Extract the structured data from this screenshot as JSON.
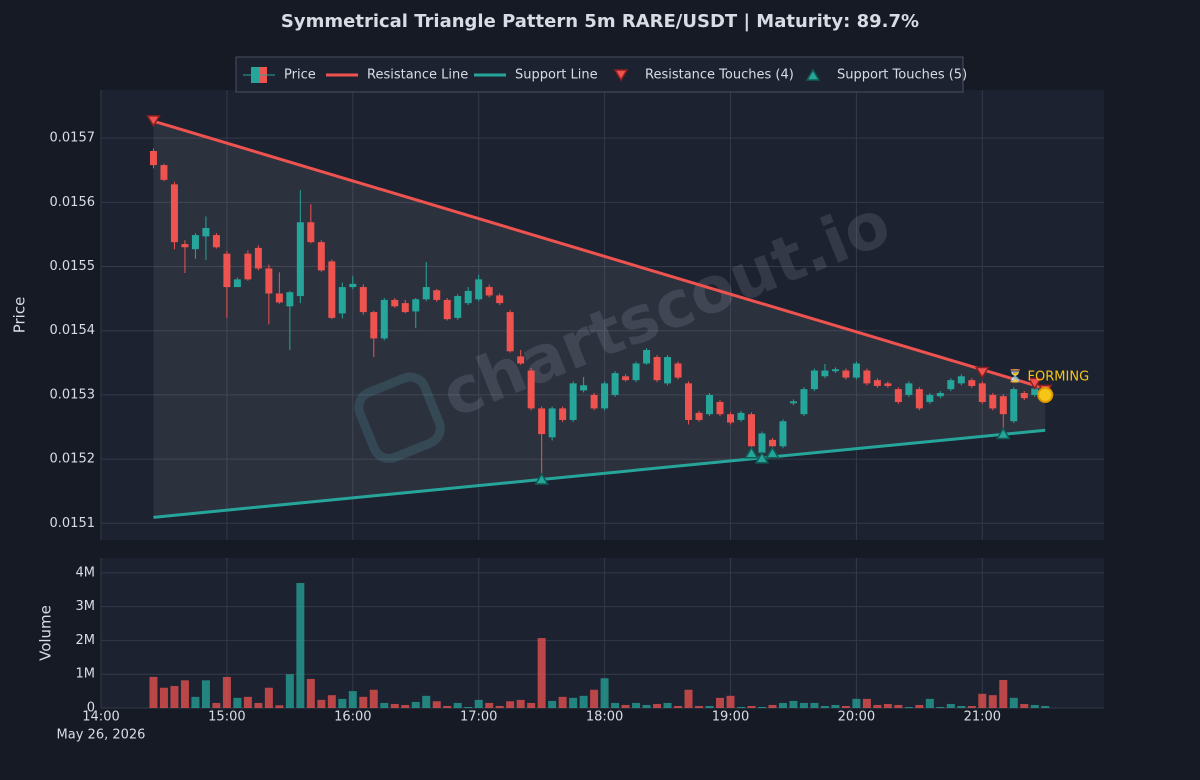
{
  "chart_data": {
    "type": "candlestick",
    "title": "Symmetrical Triangle Pattern 5m RARE/USDT | Maturity: 89.7%",
    "watermark": "chartscout.io",
    "price_name": "Price",
    "ylabel": "Price",
    "up_color": "#26a69a",
    "down_color": "#ef5350",
    "grid": true,
    "legend": "top",
    "x_date_label": "May 26, 2026",
    "xlim": [
      "14:00",
      "21:58"
    ],
    "xticks": [
      "14:00",
      "15:00",
      "16:00",
      "17:00",
      "18:00",
      "19:00",
      "20:00",
      "21:00"
    ],
    "ylim": [
      0.015074,
      0.015775
    ],
    "yticks": [
      0.0151,
      0.0152,
      0.0153,
      0.0154,
      0.0155,
      0.0156,
      0.0157
    ],
    "x": [
      "14:25",
      "14:30",
      "14:35",
      "14:40",
      "14:45",
      "14:50",
      "14:55",
      "15:00",
      "15:05",
      "15:10",
      "15:15",
      "15:20",
      "15:25",
      "15:30",
      "15:35",
      "15:40",
      "15:45",
      "15:50",
      "15:55",
      "16:00",
      "16:05",
      "16:10",
      "16:15",
      "16:20",
      "16:25",
      "16:30",
      "16:35",
      "16:40",
      "16:45",
      "16:50",
      "16:55",
      "17:00",
      "17:05",
      "17:10",
      "17:15",
      "17:20",
      "17:25",
      "17:30",
      "17:35",
      "17:40",
      "17:45",
      "17:50",
      "17:55",
      "18:00",
      "18:05",
      "18:10",
      "18:15",
      "18:20",
      "18:25",
      "18:30",
      "18:35",
      "18:40",
      "18:45",
      "18:50",
      "18:55",
      "19:00",
      "19:05",
      "19:10",
      "19:15",
      "19:20",
      "19:25",
      "19:30",
      "19:35",
      "19:40",
      "19:45",
      "19:50",
      "19:55",
      "20:00",
      "20:05",
      "20:10",
      "20:15",
      "20:20",
      "20:25",
      "20:30",
      "20:35",
      "20:40",
      "20:45",
      "20:50",
      "20:55",
      "21:00",
      "21:05",
      "21:10",
      "21:15",
      "21:20",
      "21:25",
      "21:30"
    ],
    "open": [
      0.01568,
      0.015658,
      0.015628,
      0.015535,
      0.015527,
      0.015547,
      0.015549,
      0.01552,
      0.015468,
      0.01552,
      0.015529,
      0.015497,
      0.015458,
      0.015438,
      0.015454,
      0.015569,
      0.015538,
      0.015508,
      0.015427,
      0.015468,
      0.015468,
      0.015429,
      0.015388,
      0.015448,
      0.015443,
      0.01543,
      0.015449,
      0.015463,
      0.015448,
      0.01542,
      0.015443,
      0.015449,
      0.015468,
      0.015455,
      0.015429,
      0.01536,
      0.015338,
      0.015279,
      0.015234,
      0.015279,
      0.015261,
      0.015307,
      0.0153,
      0.015279,
      0.0153,
      0.015329,
      0.015323,
      0.015349,
      0.015359,
      0.015318,
      0.015349,
      0.015318,
      0.015272,
      0.01527,
      0.015289,
      0.01527,
      0.015261,
      0.01527,
      0.01521,
      0.01523,
      0.01522,
      0.015287,
      0.01527,
      0.015309,
      0.015329,
      0.015337,
      0.015338,
      0.015327,
      0.015338,
      0.015323,
      0.015318,
      0.015309,
      0.0153,
      0.015309,
      0.015289,
      0.015298,
      0.015309,
      0.015318,
      0.015323,
      0.015318,
      0.0153,
      0.015298,
      0.015259,
      0.015303,
      0.0153,
      0.0153
    ],
    "high": [
      0.015684,
      0.01566,
      0.015632,
      0.015541,
      0.015552,
      0.015578,
      0.015552,
      0.015524,
      0.015483,
      0.015525,
      0.015533,
      0.015503,
      0.015491,
      0.015462,
      0.015619,
      0.015597,
      0.015541,
      0.015511,
      0.015475,
      0.015485,
      0.015472,
      0.015431,
      0.015451,
      0.015451,
      0.015448,
      0.015451,
      0.015507,
      0.015465,
      0.015451,
      0.015457,
      0.015468,
      0.015487,
      0.015472,
      0.015458,
      0.015432,
      0.01537,
      0.015342,
      0.015282,
      0.015282,
      0.015282,
      0.015321,
      0.015328,
      0.015303,
      0.015321,
      0.015337,
      0.015332,
      0.015352,
      0.015373,
      0.015362,
      0.015362,
      0.015352,
      0.015321,
      0.015275,
      0.015303,
      0.015292,
      0.015273,
      0.015275,
      0.015273,
      0.015243,
      0.015233,
      0.015262,
      0.015293,
      0.015312,
      0.015341,
      0.015348,
      0.015343,
      0.015341,
      0.015352,
      0.015341,
      0.015326,
      0.015321,
      0.015312,
      0.015321,
      0.015312,
      0.015303,
      0.015306,
      0.015326,
      0.015332,
      0.015326,
      0.015321,
      0.015303,
      0.015301,
      0.015312,
      0.015306,
      0.015313,
      0.015305
    ],
    "low": [
      0.015653,
      0.015633,
      0.015527,
      0.01549,
      0.015512,
      0.01551,
      0.015528,
      0.01542,
      0.015468,
      0.015478,
      0.015494,
      0.01541,
      0.015442,
      0.01537,
      0.015443,
      0.015536,
      0.015492,
      0.015418,
      0.015419,
      0.015465,
      0.015425,
      0.015359,
      0.015385,
      0.015436,
      0.015427,
      0.015404,
      0.015446,
      0.015445,
      0.015416,
      0.015417,
      0.01544,
      0.015446,
      0.015452,
      0.01544,
      0.015366,
      0.015347,
      0.015276,
      0.015167,
      0.015229,
      0.015258,
      0.015258,
      0.015304,
      0.015276,
      0.015276,
      0.015297,
      0.015321,
      0.01532,
      0.015347,
      0.01532,
      0.015315,
      0.015324,
      0.015254,
      0.015258,
      0.015267,
      0.015267,
      0.015254,
      0.015258,
      0.015209,
      0.015203,
      0.015212,
      0.015217,
      0.015284,
      0.015267,
      0.015306,
      0.015326,
      0.015334,
      0.015324,
      0.015324,
      0.015315,
      0.015311,
      0.015311,
      0.015286,
      0.015297,
      0.015276,
      0.015286,
      0.015295,
      0.015306,
      0.015315,
      0.015311,
      0.015286,
      0.015276,
      0.015248,
      0.015256,
      0.015292,
      0.015297,
      0.015297
    ],
    "close": [
      0.015658,
      0.015635,
      0.015538,
      0.01553,
      0.015549,
      0.01556,
      0.01553,
      0.015468,
      0.01548,
      0.01548,
      0.015497,
      0.015458,
      0.015444,
      0.01546,
      0.015569,
      0.015538,
      0.015494,
      0.01542,
      0.015468,
      0.015473,
      0.015429,
      0.015388,
      0.015448,
      0.015438,
      0.015429,
      0.015449,
      0.015468,
      0.015448,
      0.015418,
      0.015454,
      0.015462,
      0.01548,
      0.015455,
      0.015443,
      0.015368,
      0.015349,
      0.015279,
      0.015239,
      0.015279,
      0.015261,
      0.015318,
      0.015315,
      0.015279,
      0.015318,
      0.015334,
      0.015323,
      0.015349,
      0.01537,
      0.015323,
      0.015359,
      0.015327,
      0.015261,
      0.015261,
      0.0153,
      0.01527,
      0.015257,
      0.015272,
      0.01522,
      0.01524,
      0.01522,
      0.015259,
      0.01529,
      0.015309,
      0.015338,
      0.015338,
      0.01534,
      0.015327,
      0.015349,
      0.015318,
      0.015314,
      0.015314,
      0.015289,
      0.015318,
      0.015279,
      0.0153,
      0.015303,
      0.015323,
      0.015329,
      0.015314,
      0.015289,
      0.015279,
      0.01527,
      0.015309,
      0.015295,
      0.01531,
      0.015302
    ],
    "lines": [
      {
        "name": "Resistance Line",
        "color": "#ef5350",
        "x": [
          "14:25",
          "21:30"
        ],
        "values": [
          0.0157265,
          0.01531
        ]
      },
      {
        "name": "Support Line",
        "color": "#26a69a",
        "x": [
          "14:25",
          "21:30"
        ],
        "values": [
          0.0151093,
          0.015245
        ]
      }
    ],
    "touches": [
      {
        "name": "Resistance Touches (4)",
        "marker": "down",
        "color": "#ef5350",
        "x": [
          "14:25",
          "21:00",
          "21:25",
          "21:30"
        ],
        "values": [
          0.015727,
          0.015335,
          0.015318,
          0.015307
        ]
      },
      {
        "name": "Support Touches (5)",
        "marker": "up",
        "color": "#26a69a",
        "x": [
          "17:30",
          "19:10",
          "19:15",
          "19:20",
          "21:10"
        ],
        "values": [
          0.015169,
          0.01521,
          0.015202,
          0.01521,
          0.01524
        ]
      }
    ],
    "current": {
      "text": "⏳ FORMING",
      "x": "21:30",
      "value": 0.0153,
      "color": "#f5c518"
    },
    "volume": {
      "ylabel": "Volume",
      "ylim": [
        0,
        4440000
      ],
      "yticks": [
        0,
        {
          "value": 1000000,
          "label": "1M"
        },
        {
          "value": 2000000,
          "label": "2M"
        },
        {
          "value": 3000000,
          "label": "3M"
        },
        {
          "value": 4000000,
          "label": "4M"
        }
      ],
      "values": [
        920000,
        600000,
        650000,
        820000,
        330000,
        820000,
        150000,
        920000,
        300000,
        330000,
        150000,
        600000,
        80000,
        1000000,
        3700000,
        860000,
        240000,
        380000,
        270000,
        500000,
        330000,
        540000,
        150000,
        120000,
        90000,
        180000,
        360000,
        200000,
        60000,
        150000,
        30000,
        240000,
        150000,
        60000,
        200000,
        240000,
        150000,
        2070000,
        210000,
        330000,
        300000,
        360000,
        540000,
        880000,
        150000,
        90000,
        150000,
        90000,
        120000,
        150000,
        60000,
        540000,
        60000,
        60000,
        300000,
        360000,
        30000,
        60000,
        30000,
        90000,
        150000,
        210000,
        150000,
        150000,
        60000,
        90000,
        60000,
        270000,
        270000,
        90000,
        120000,
        90000,
        30000,
        90000,
        270000,
        30000,
        120000,
        60000,
        60000,
        420000,
        380000,
        830000,
        300000,
        120000,
        90000,
        60000
      ]
    }
  }
}
